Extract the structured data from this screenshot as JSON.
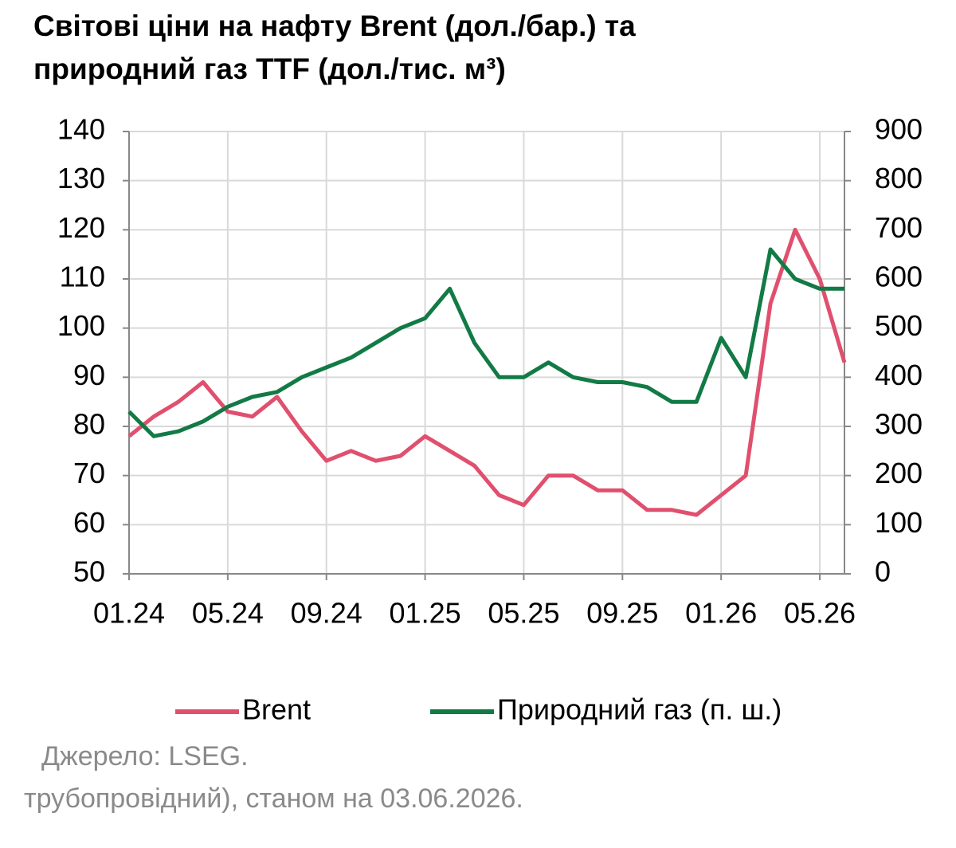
{
  "chart_data": {
    "type": "line",
    "title": "Світові ціни на нафту Brent (дол./бар.) та природний газ TTF (дол./тис. м³)",
    "x": [
      "01.24",
      "02.24",
      "03.24",
      "04.24",
      "05.24",
      "06.24",
      "07.24",
      "08.24",
      "09.24",
      "10.24",
      "11.24",
      "12.24",
      "01.25",
      "02.25",
      "03.25",
      "04.25",
      "05.25",
      "06.25",
      "07.25",
      "08.25",
      "09.25",
      "10.25",
      "11.25",
      "12.25",
      "01.26",
      "02.26",
      "03.26",
      "04.26",
      "05.26",
      "06.26"
    ],
    "xticks": [
      "01.24",
      "05.24",
      "09.24",
      "01.25",
      "05.25",
      "09.25",
      "01.26",
      "05.26"
    ],
    "series": [
      {
        "name": "Brent",
        "color": "#e0506e",
        "values": [
          78,
          82,
          85,
          89,
          83,
          82,
          86,
          79,
          73,
          75,
          73,
          74,
          78,
          75,
          72,
          66,
          64,
          70,
          70,
          67,
          67,
          63,
          63,
          62,
          66,
          70,
          105,
          120,
          110,
          93
        ]
      },
      {
        "name": "Природний газ (п. ш.)",
        "color": "#127a45",
        "axis": "y2",
        "values": [
          330,
          280,
          290,
          310,
          340,
          360,
          370,
          400,
          420,
          440,
          470,
          500,
          520,
          580,
          470,
          400,
          400,
          430,
          400,
          390,
          390,
          380,
          350,
          350,
          480,
          400,
          660,
          600,
          580,
          580
        ]
      }
    ],
    "ylim": [
      50,
      140
    ],
    "yticks": [
      50,
      60,
      70,
      80,
      90,
      100,
      110,
      120,
      130,
      140
    ],
    "y2lim": [
      0,
      900
    ],
    "y2ticks": [
      0,
      100,
      200,
      300,
      400,
      500,
      600,
      700,
      800,
      900
    ],
    "grid": true,
    "notes": [
      "Джерело: LSEG.",
      "трубопровідний), станом на 03.06.2026."
    ]
  }
}
